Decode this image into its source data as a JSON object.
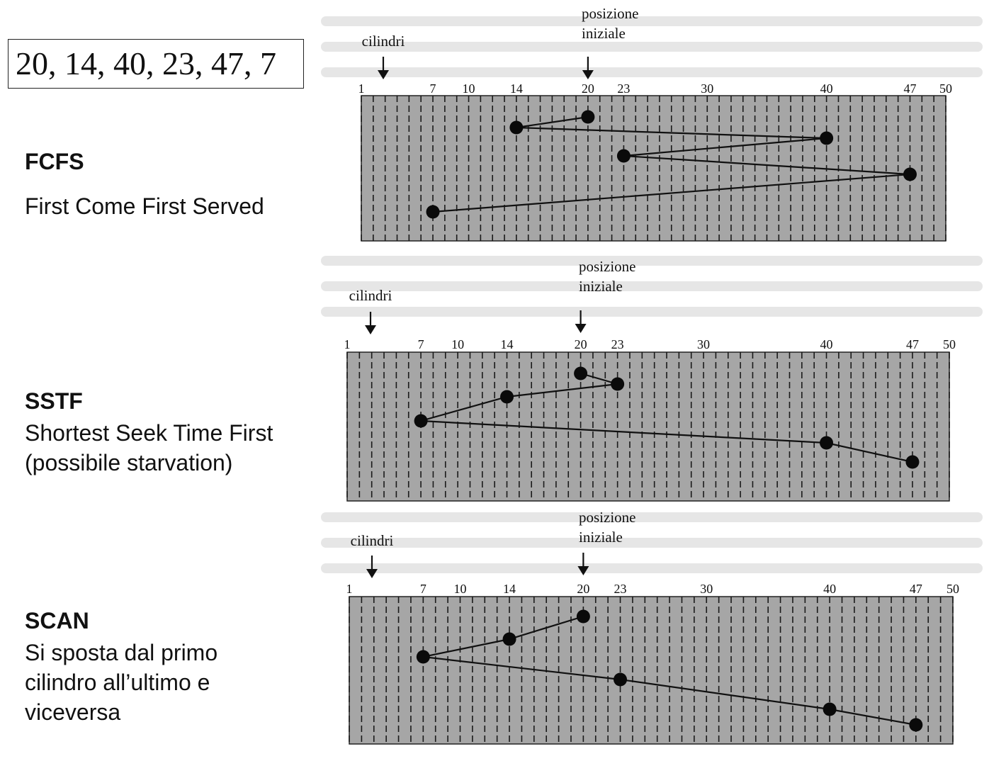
{
  "request_sequence": "20, 14, 40, 23, 47, 7",
  "colors": {
    "panel_bg": "#a6a6a6",
    "ink": "#111111"
  },
  "axis": {
    "min": 1,
    "max": 50,
    "tick_values": [
      1,
      7,
      10,
      14,
      20,
      23,
      30,
      40,
      47,
      50
    ],
    "cylinders_label": "cilindri",
    "start_label_line1": "posizione",
    "start_label_line2": "iniziale"
  },
  "algorithms": [
    {
      "id": "fcfs",
      "title": "FCFS",
      "description": "First Come First Served",
      "path": [
        20,
        14,
        40,
        23,
        47,
        7
      ]
    },
    {
      "id": "sstf",
      "title": "SSTF",
      "description": "Shortest Seek Time First\n(possibile starvation)",
      "path": [
        20,
        23,
        14,
        7,
        40,
        47
      ]
    },
    {
      "id": "scan",
      "title": "SCAN",
      "description": "Si sposta dal primo\ncilindro all’ultimo e\nviceversa",
      "path": [
        20,
        14,
        7,
        23,
        40,
        47
      ]
    }
  ]
}
